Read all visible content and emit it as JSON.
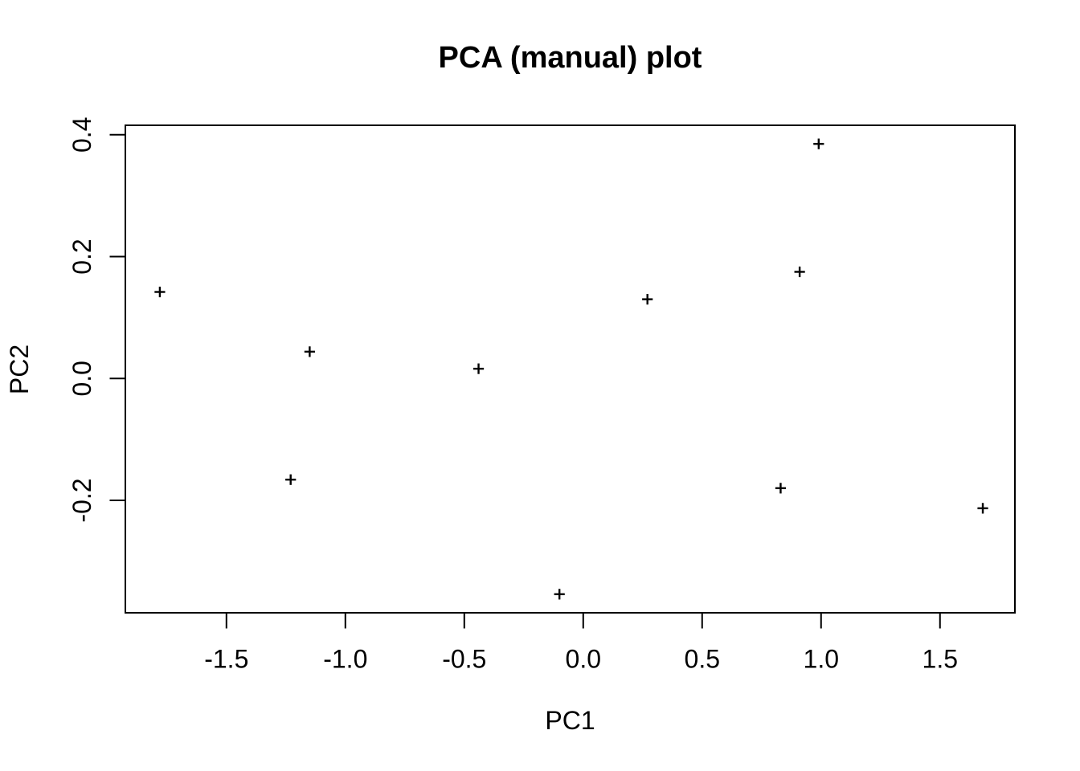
{
  "page": {
    "background_color": "#ffffff",
    "foreground_color": "#000000"
  },
  "chart_data": {
    "type": "scatter",
    "title": "PCA (manual) plot",
    "xlabel": "PC1",
    "ylabel": "PC2",
    "marker": "plus",
    "marker_color": "#000000",
    "grid": false,
    "legend": null,
    "xlim": [
      -1.925,
      1.815
    ],
    "ylim": [
      -0.3845,
      0.4155
    ],
    "x_ticks": [
      -1.5,
      -1.0,
      -0.5,
      0.0,
      0.5,
      1.0,
      1.5
    ],
    "x_tick_labels": [
      "-1.5",
      "-1.0",
      "-0.5",
      "0.0",
      "0.5",
      "1.0",
      "1.5"
    ],
    "y_ticks": [
      -0.2,
      0.0,
      0.2,
      0.4
    ],
    "y_tick_labels": [
      "-0.2",
      "0.0",
      "0.2",
      "0.4"
    ],
    "points": [
      {
        "x": -1.78,
        "y": 0.142
      },
      {
        "x": -1.23,
        "y": -0.166
      },
      {
        "x": -1.15,
        "y": 0.044
      },
      {
        "x": -0.44,
        "y": 0.016
      },
      {
        "x": -0.1,
        "y": -0.354
      },
      {
        "x": 0.27,
        "y": 0.13
      },
      {
        "x": 0.83,
        "y": -0.18
      },
      {
        "x": 0.91,
        "y": 0.175
      },
      {
        "x": 0.99,
        "y": 0.385
      },
      {
        "x": 1.68,
        "y": -0.213
      }
    ]
  }
}
